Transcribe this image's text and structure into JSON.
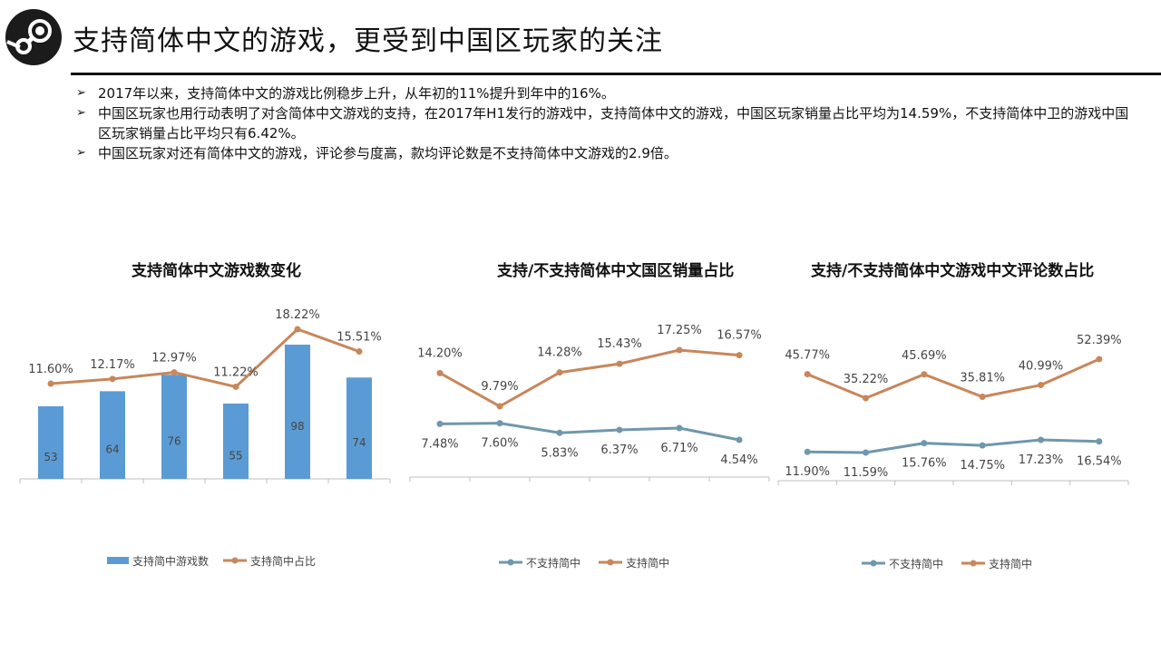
{
  "header": {
    "title": "支持简体中文的游戏，更受到中国区玩家的关注",
    "logo_icon": "steam-logo-icon"
  },
  "bullets": [
    {
      "marker": "➢",
      "text": "2017年以来，支持简体中文的游戏比例稳步上升，从年初的11%提升到年中的16%。"
    },
    {
      "marker": "➢",
      "text": "中国区玩家也用行动表明了对含简体中文游戏的支持，在2017年H1发行的游戏中，支持简体中文的游戏，中国区玩家销量占比平均为14.59%，不支持简体中卫的游戏中国区玩家销量占比平均只有6.42%。"
    },
    {
      "marker": "➢",
      "text": "中国区玩家对还有简体中文的游戏，评论参与度高，款均评论数是不支持简体中文游戏的2.9倍。"
    }
  ],
  "colors": {
    "blue_bar": "#5b9bd5",
    "orange_line": "#c8865b",
    "gray_line": "#6f97ad",
    "axis": "#bfbfbf"
  },
  "chart_data": [
    {
      "type": "bar",
      "title": "支持简体中文游戏数变化",
      "categories": [
        "",
        "",
        "",
        "",
        "",
        ""
      ],
      "series": [
        {
          "name": "支持简中游戏数",
          "kind": "bar",
          "values": [
            53,
            64,
            76,
            55,
            98,
            74
          ],
          "labels": [
            "53",
            "64",
            "76",
            "55",
            "98",
            "74"
          ],
          "color": "#5b9bd5"
        },
        {
          "name": "支持简中占比",
          "kind": "line",
          "values": [
            11.6,
            12.17,
            12.97,
            11.22,
            18.22,
            15.51
          ],
          "labels": [
            "11.60%",
            "12.17%",
            "12.97%",
            "11.22%",
            "18.22%",
            "15.51%"
          ],
          "color": "#c8865b"
        }
      ],
      "legend_position": "bottom"
    },
    {
      "type": "line",
      "title": "支持/不支持简体中文国区销量占比",
      "categories": [
        "",
        "",
        "",
        "",
        "",
        ""
      ],
      "series": [
        {
          "name": "不支持简中",
          "values": [
            7.48,
            7.6,
            5.83,
            6.37,
            6.71,
            4.54
          ],
          "labels": [
            "7.48%",
            "7.60%",
            "5.83%",
            "6.37%",
            "6.71%",
            "4.54%"
          ],
          "color": "#6f97ad"
        },
        {
          "name": "支持简中",
          "values": [
            14.2,
            9.79,
            14.28,
            15.43,
            17.25,
            16.57
          ],
          "labels": [
            "14.20%",
            "9.79%",
            "14.28%",
            "15.43%",
            "17.25%",
            "16.57%"
          ],
          "color": "#c8865b"
        }
      ],
      "legend_position": "bottom"
    },
    {
      "type": "line",
      "title": "支持/不支持简体中文游戏中文评论数占比",
      "categories": [
        "",
        "",
        "",
        "",
        "",
        ""
      ],
      "series": [
        {
          "name": "不支持简中",
          "values": [
            11.9,
            11.59,
            15.76,
            14.75,
            17.23,
            16.54
          ],
          "labels": [
            "11.90%",
            "11.59%",
            "15.76%",
            "14.75%",
            "17.23%",
            "16.54%"
          ],
          "color": "#6f97ad"
        },
        {
          "name": "支持简中",
          "values": [
            45.77,
            35.22,
            45.69,
            35.81,
            40.99,
            52.39
          ],
          "labels": [
            "45.77%",
            "35.22%",
            "45.69%",
            "35.81%",
            "40.99%",
            "52.39%"
          ],
          "color": "#c8865b"
        }
      ],
      "legend_position": "bottom"
    }
  ]
}
